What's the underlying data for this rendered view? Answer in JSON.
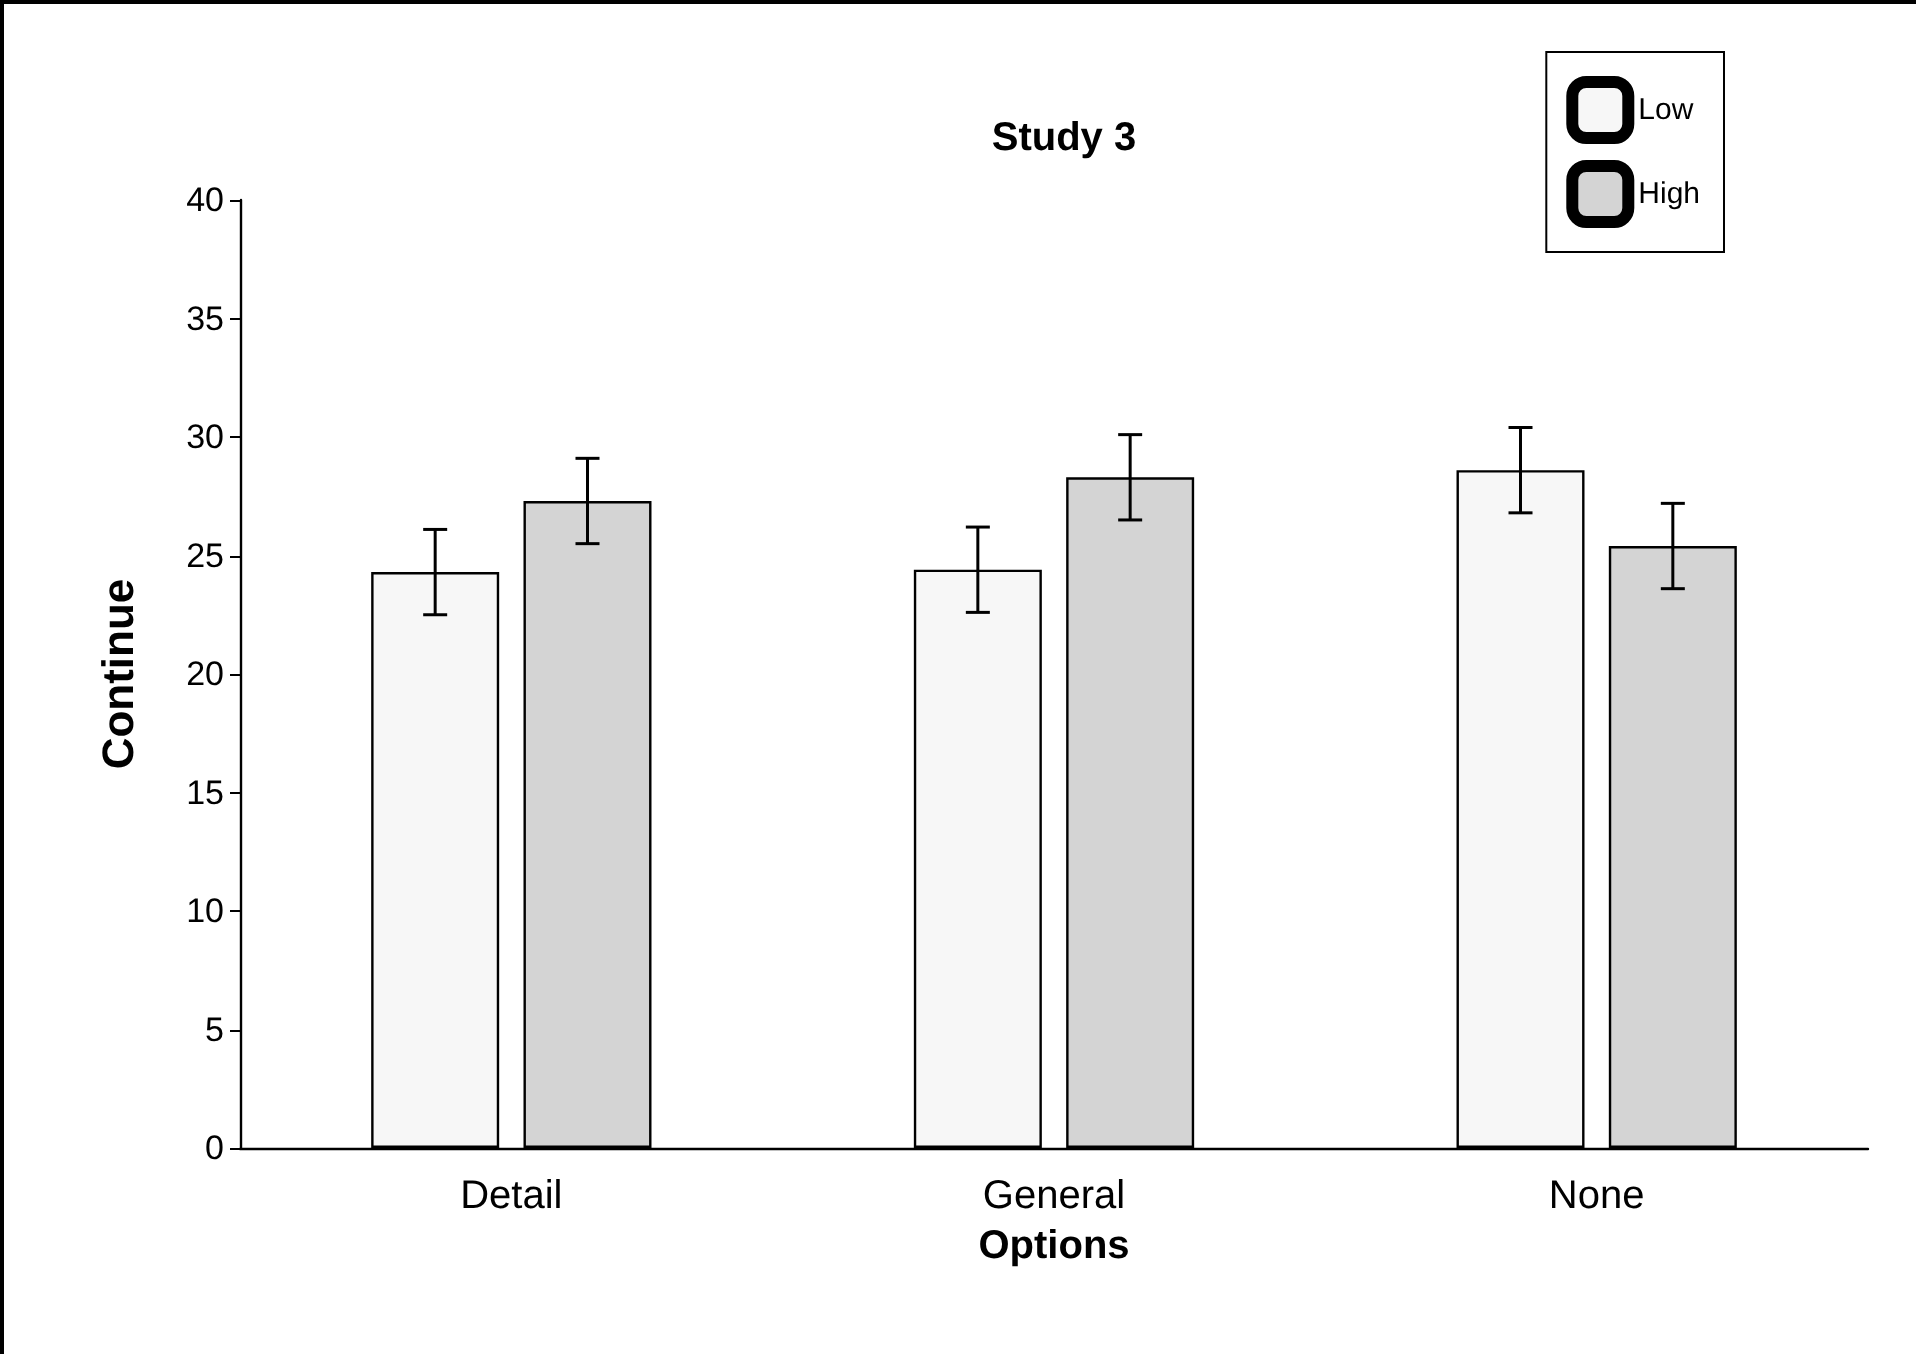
{
  "chart_data": {
    "type": "bar",
    "title": "Study 3",
    "xlabel": "Options",
    "ylabel": "Continue",
    "categories": [
      "Detail",
      "General",
      "None"
    ],
    "series": [
      {
        "name": "Low",
        "color": "#f7f7f7",
        "values": [
          24.3,
          24.4,
          28.6
        ],
        "errors": [
          1.8,
          1.8,
          1.8
        ]
      },
      {
        "name": "High",
        "color": "#d4d4d4",
        "values": [
          27.3,
          28.3,
          25.4
        ],
        "errors": [
          1.8,
          1.8,
          1.8
        ]
      }
    ],
    "ylim": [
      0,
      40
    ],
    "yticks": [
      0,
      5,
      10,
      15,
      20,
      25,
      30,
      35,
      40
    ],
    "grid": false,
    "legend": "top right"
  }
}
